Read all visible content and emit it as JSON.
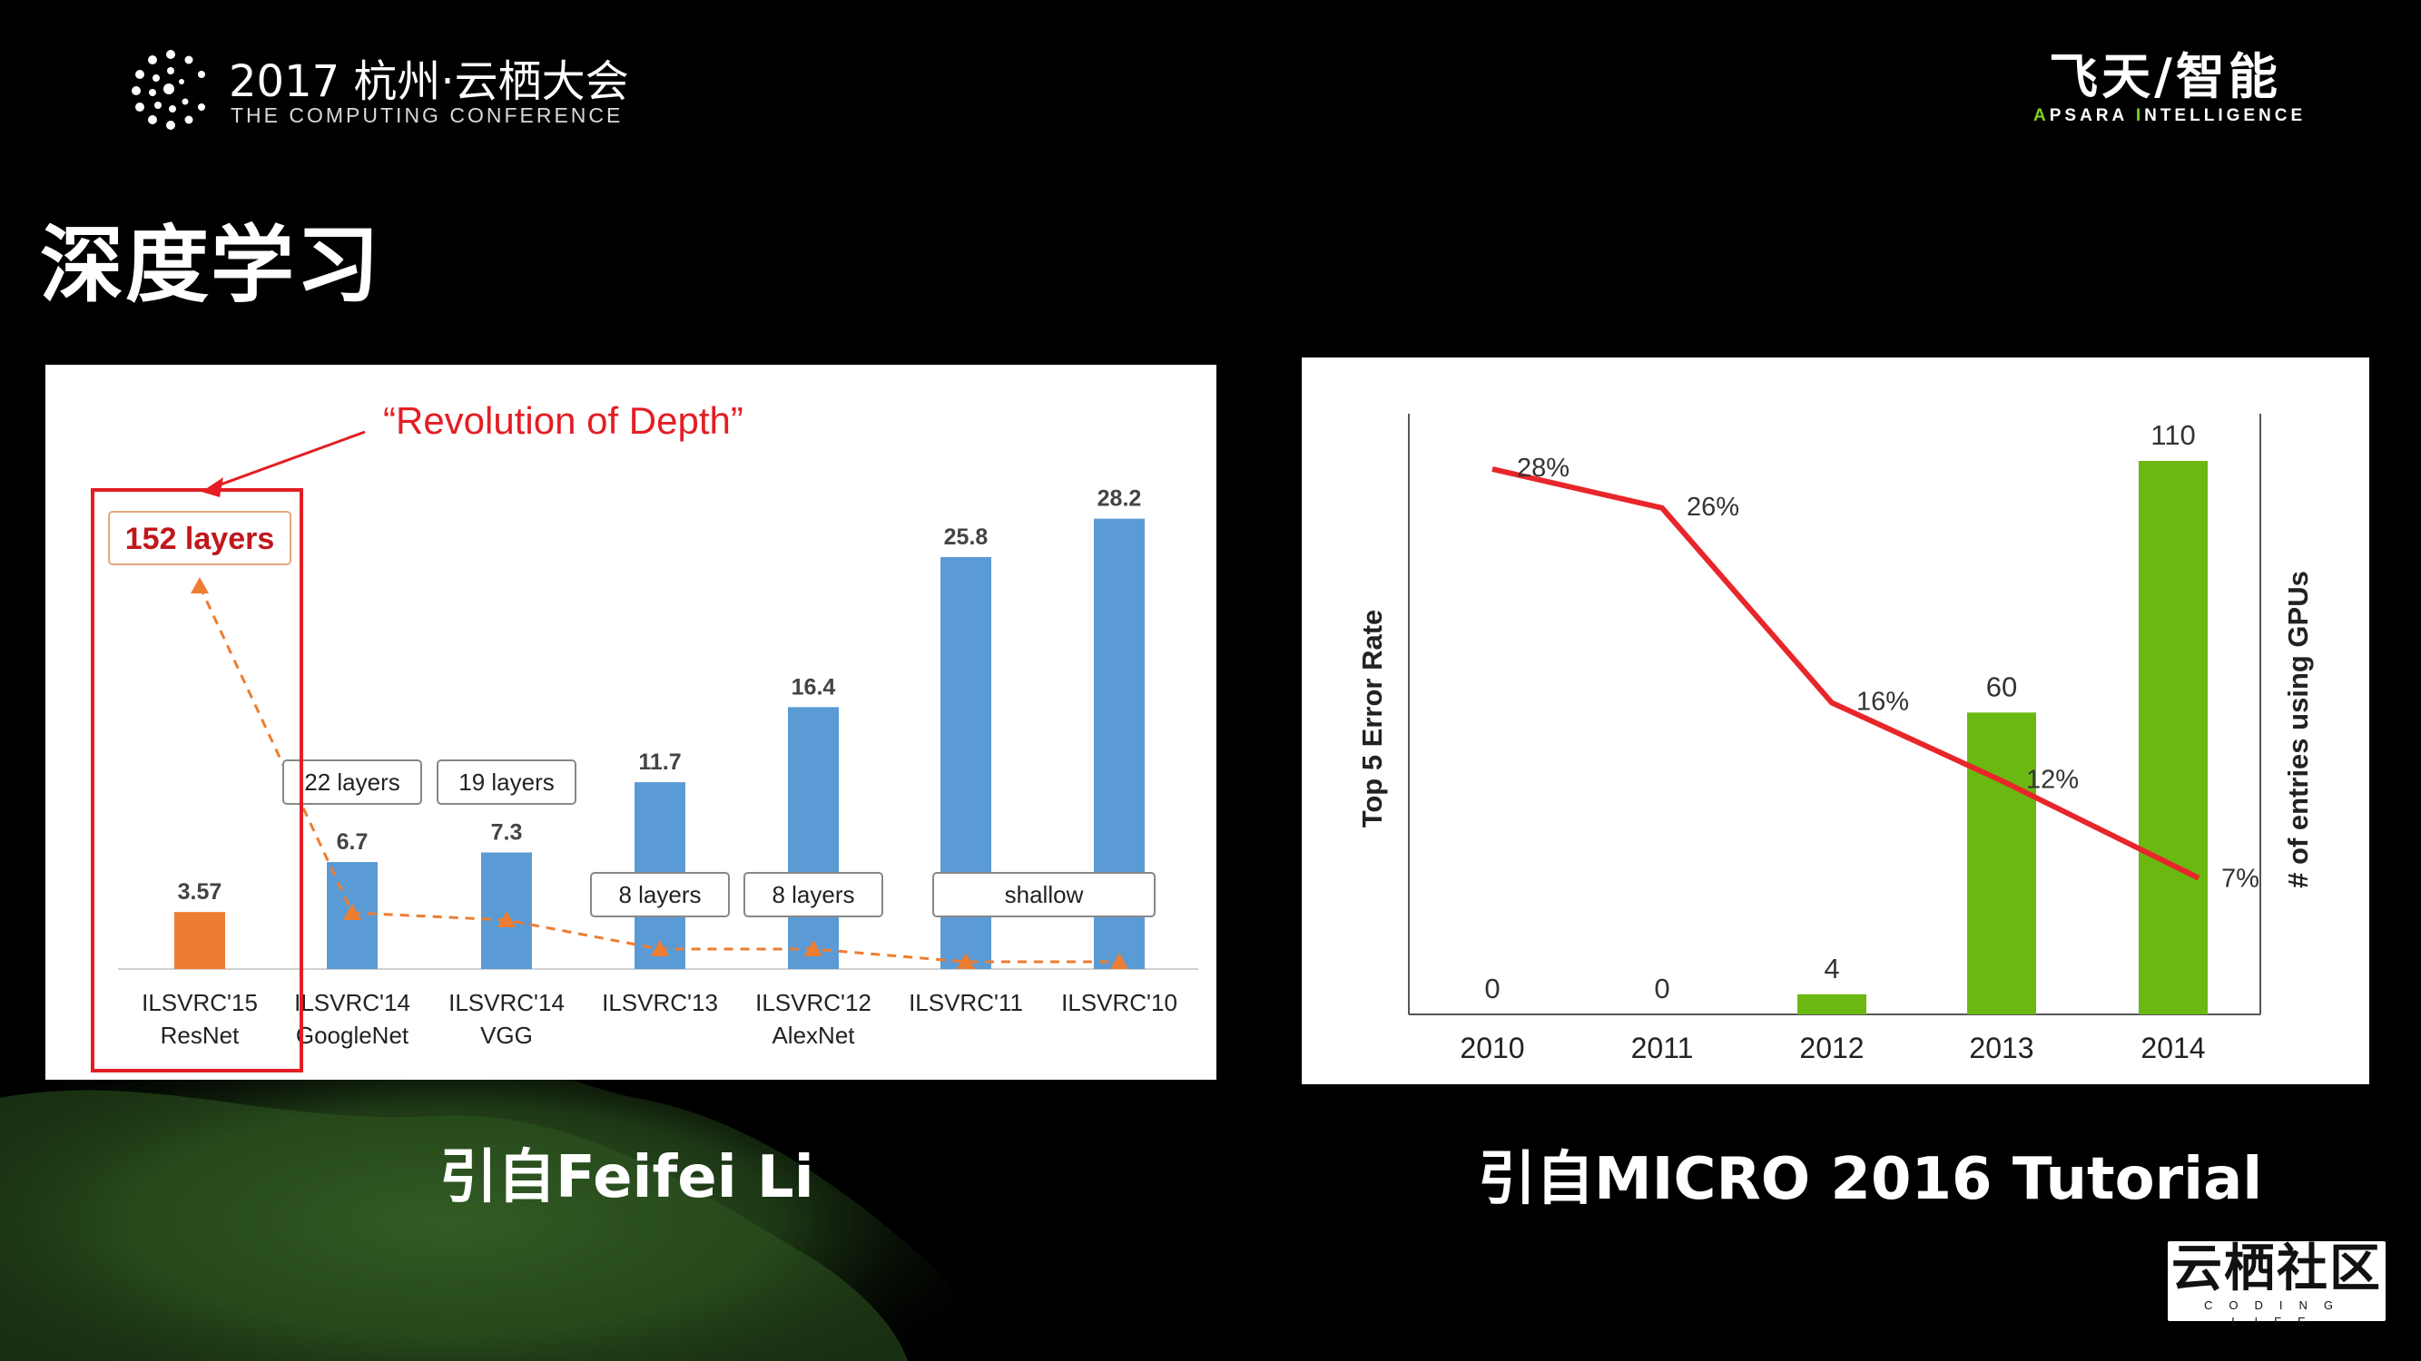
{
  "header": {
    "conference_title": "2017 杭州·云栖大会",
    "conference_subtitle": "THE COMPUTING CONFERENCE",
    "brand_cn": "飞天/智能",
    "brand_en_a": "A",
    "brand_en_b": "PSARA ",
    "brand_en_c": "I",
    "brand_en_d": "NTELLIGENCE"
  },
  "page": {
    "title": "深度学习",
    "caption_left": "引自Feifei Li",
    "caption_right": "引自MICRO 2016 Tutorial"
  },
  "footer": {
    "badge_cn": "云栖社区",
    "badge_en": "CODING LIFE"
  },
  "colors": {
    "bar_blue": "#5b9bd5",
    "bar_orange": "#ed7d31",
    "highlight_red": "#e31e24",
    "bar_green": "#6bb812",
    "line_red": "#e8262a"
  },
  "chart_data": [
    {
      "type": "bar",
      "annotation": "“Revolution of Depth”",
      "categories": [
        "ILSVRC'15",
        "ILSVRC'14",
        "ILSVRC'14",
        "ILSVRC'13",
        "ILSVRC'12",
        "ILSVRC'11",
        "ILSVRC'10"
      ],
      "subcategories": [
        "ResNet",
        "GoogleNet",
        "VGG",
        "",
        "AlexNet",
        "",
        ""
      ],
      "values": [
        3.57,
        6.7,
        7.3,
        11.7,
        16.4,
        25.8,
        28.2
      ],
      "value_labels": [
        "3.57",
        "6.7",
        "7.3",
        "11.7",
        "16.4",
        "25.8",
        "28.2"
      ],
      "layer_labels": [
        "152 layers",
        "22 layers",
        "19 layers",
        "8 layers",
        "8 layers",
        "shallow"
      ],
      "ylim": [
        0,
        30
      ]
    },
    {
      "type": "bar+line",
      "categories": [
        "2010",
        "2011",
        "2012",
        "2013",
        "2014"
      ],
      "bars": {
        "name": "# of entries using GPUs",
        "values": [
          0,
          0,
          4,
          60,
          110
        ]
      },
      "line": {
        "name": "Top 5 Error Rate",
        "values": [
          28,
          26,
          16,
          12,
          7
        ],
        "labels": [
          "28%",
          "26%",
          "16%",
          "12%",
          "7%"
        ]
      },
      "ylabel_left": "Top 5 Error Rate",
      "ylabel_right": "# of entries using GPUs",
      "ylim_bars": [
        0,
        110
      ],
      "ylim_line": [
        0,
        30
      ]
    }
  ]
}
